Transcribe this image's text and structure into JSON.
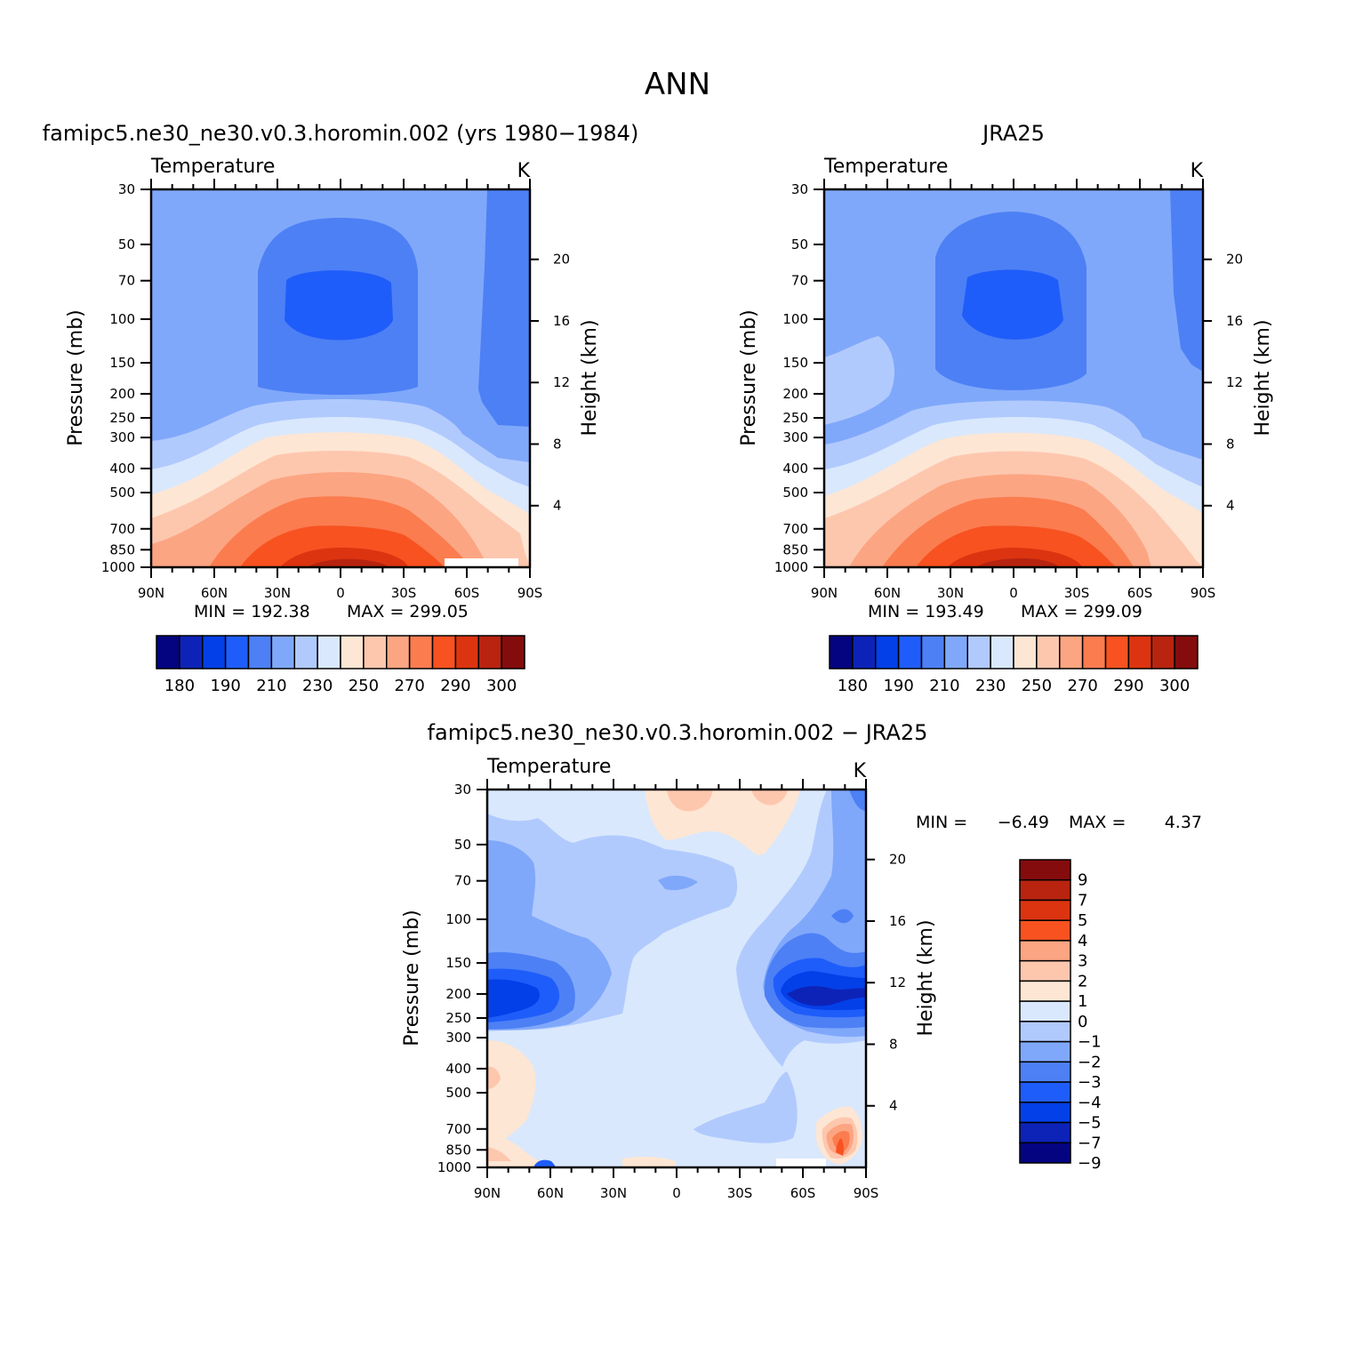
{
  "page_title": "ANN",
  "chart_data": [
    {
      "type": "heatmap",
      "subtitle": "famipc5.ne30_ne30.v0.3.horomin.002 (yrs 1980−1984)",
      "variable": "Temperature",
      "units": "K",
      "xlabel": "",
      "ylabel": "Pressure (mb)",
      "ylabel_right": "Height (km)",
      "x_ticks": [
        "90N",
        "60N",
        "30N",
        "0",
        "30S",
        "60S",
        "90S"
      ],
      "x_values": [
        90,
        60,
        30,
        0,
        -30,
        -60,
        -90
      ],
      "y_ticks": [
        30,
        50,
        70,
        100,
        150,
        200,
        250,
        300,
        400,
        500,
        700,
        850,
        1000
      ],
      "y_right_ticks": [
        20,
        16,
        12,
        8,
        4
      ],
      "ylim": [
        30,
        1000
      ],
      "y_scale": "log",
      "min_label": "MIN = 192.38",
      "max_label": "MAX = 299.05",
      "min": 192.38,
      "max": 299.05,
      "colorbar": {
        "orientation": "horizontal",
        "colors": [
          "#040480",
          "#0d23b8",
          "#0440e8",
          "#1f5dfa",
          "#4d80f5",
          "#80a8fa",
          "#b1cafe",
          "#d9e8fc",
          "#fee6d4",
          "#fdc7ae",
          "#fca582",
          "#fb7c4f",
          "#f75220",
          "#dc3410",
          "#b82410",
          "#850c0c"
        ],
        "labels": [
          "180",
          "190",
          "210",
          "230",
          "250",
          "270",
          "290",
          "300"
        ]
      }
    },
    {
      "type": "heatmap",
      "subtitle": "JRA25",
      "variable": "Temperature",
      "units": "K",
      "xlabel": "",
      "ylabel": "Pressure (mb)",
      "ylabel_right": "Height (km)",
      "x_ticks": [
        "90N",
        "60N",
        "30N",
        "0",
        "30S",
        "60S",
        "90S"
      ],
      "x_values": [
        90,
        60,
        30,
        0,
        -30,
        -60,
        -90
      ],
      "y_ticks": [
        30,
        50,
        70,
        100,
        150,
        200,
        250,
        300,
        400,
        500,
        700,
        850,
        1000
      ],
      "y_right_ticks": [
        20,
        16,
        12,
        8,
        4
      ],
      "ylim": [
        30,
        1000
      ],
      "y_scale": "log",
      "min_label": "MIN = 193.49",
      "max_label": "MAX = 299.09",
      "min": 193.49,
      "max": 299.09,
      "colorbar": {
        "orientation": "horizontal",
        "colors": [
          "#040480",
          "#0d23b8",
          "#0440e8",
          "#1f5dfa",
          "#4d80f5",
          "#80a8fa",
          "#b1cafe",
          "#d9e8fc",
          "#fee6d4",
          "#fdc7ae",
          "#fca582",
          "#fb7c4f",
          "#f75220",
          "#dc3410",
          "#b82410",
          "#850c0c"
        ],
        "labels": [
          "180",
          "190",
          "210",
          "230",
          "250",
          "270",
          "290",
          "300"
        ]
      }
    },
    {
      "type": "heatmap",
      "subtitle": "famipc5.ne30_ne30.v0.3.horomin.002 − JRA25",
      "variable": "Temperature",
      "units": "K",
      "xlabel": "",
      "ylabel": "Pressure (mb)",
      "ylabel_right": "Height (km)",
      "x_ticks": [
        "90N",
        "60N",
        "30N",
        "0",
        "30S",
        "60S",
        "90S"
      ],
      "x_values": [
        90,
        60,
        30,
        0,
        -30,
        -60,
        -90
      ],
      "y_ticks": [
        30,
        50,
        70,
        100,
        150,
        200,
        250,
        300,
        400,
        500,
        700,
        850,
        1000
      ],
      "y_right_ticks": [
        20,
        16,
        12,
        8,
        4
      ],
      "ylim": [
        30,
        1000
      ],
      "y_scale": "log",
      "min_label": "MIN =",
      "max_label": "MAX =",
      "min_value": "−6.49",
      "max_value": "4.37",
      "min": -6.49,
      "max": 4.37,
      "colorbar": {
        "orientation": "vertical",
        "colors": [
          "#850c0c",
          "#b82410",
          "#dc3410",
          "#f75220",
          "#fca582",
          "#fdc7ae",
          "#fee6d4",
          "#d9e8fc",
          "#b1cafe",
          "#80a8fa",
          "#4d80f5",
          "#1f5dfa",
          "#0440e8",
          "#0d23b8",
          "#040480"
        ],
        "labels": [
          "9",
          "7",
          "5",
          "4",
          "3",
          "2",
          "1",
          "0",
          "−1",
          "−2",
          "−3",
          "−4",
          "−5",
          "−7",
          "−9"
        ]
      }
    }
  ]
}
